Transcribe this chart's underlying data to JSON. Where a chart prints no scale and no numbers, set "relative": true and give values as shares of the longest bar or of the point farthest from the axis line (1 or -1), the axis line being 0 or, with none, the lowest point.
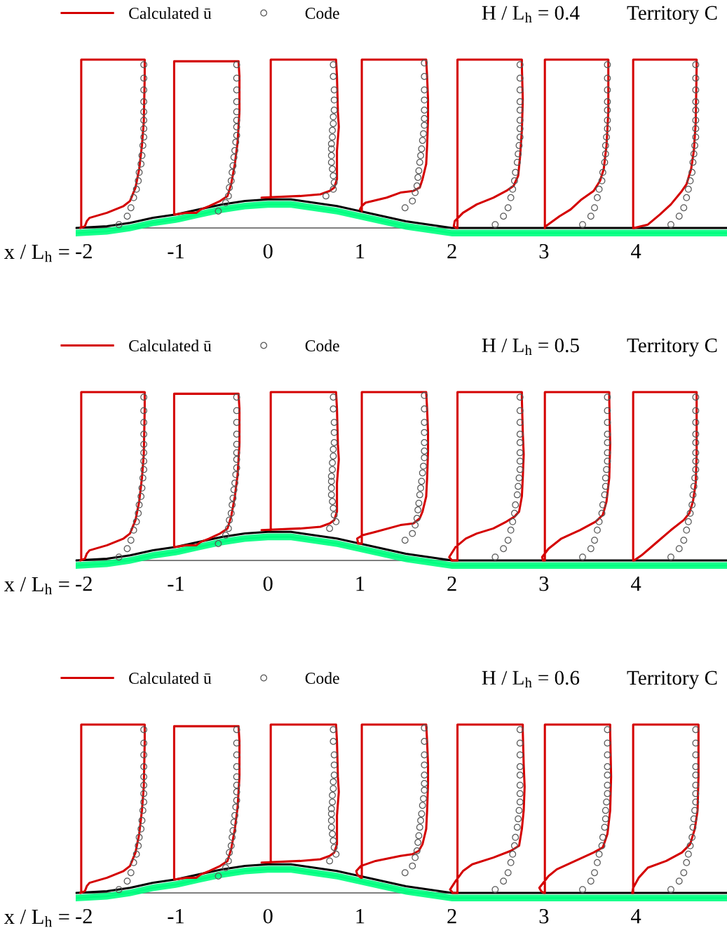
{
  "chart_data": [
    {
      "type": "line",
      "title": "H / L$_{h}$ = 0.4",
      "subtitle": "Territory C",
      "xlabel": "x / L$_{h}$ =",
      "relative": true,
      "xlim": [
        -2.09,
        4.99
      ],
      "xticks": [
        -2,
        -1,
        0,
        1,
        2,
        3,
        4
      ],
      "legend": "top left",
      "series": [
        {
          "color": "#00ff80",
          "x": [
            -2.09,
            -1.75,
            -1.5,
            -1.25,
            -1.0,
            -0.75,
            -0.5,
            -0.25,
            0,
            0.25,
            0.5,
            0.75,
            1.0,
            1.25,
            1.5,
            1.75,
            2.0,
            4.99
          ],
          "values": [
            -0.03,
            -0.02,
            0,
            0.03,
            0.05,
            0.08,
            0.11,
            0.13,
            0.14,
            0.14,
            0.12,
            0.1,
            0.07,
            0.04,
            0.01,
            -0.01,
            -0.03,
            -0.03
          ],
          "lower": [
            -0.05,
            -0.04,
            -0.02,
            0.01,
            0.03,
            0.06,
            0.09,
            0.11,
            0.12,
            0.12,
            0.1,
            0.08,
            0.05,
            0.02,
            -0.01,
            -0.03,
            -0.05,
            -0.05
          ],
          "upper": [
            -0.01,
            0,
            0.02,
            0.05,
            0.07,
            0.1,
            0.13,
            0.15,
            0.16,
            0.16,
            0.14,
            0.12,
            0.09,
            0.06,
            0.03,
            0.01,
            -0.01,
            -0.01
          ]
        },
        {
          "color": "#000000",
          "x": [
            -2.09,
            -1.75,
            -1.5,
            -1.25,
            -1.0,
            -0.75,
            -0.5,
            -0.25,
            0,
            0.25,
            0.5,
            0.75,
            1.0,
            1.25,
            1.5,
            1.75,
            2.0,
            4.99
          ],
          "values": [
            0,
            0.01,
            0.03,
            0.06,
            0.08,
            0.11,
            0.14,
            0.16,
            0.17,
            0.17,
            0.15,
            0.13,
            0.1,
            0.07,
            0.04,
            0.02,
            0,
            0
          ]
        },
        {
          "name": "Calculated ū",
          "color": "#d40000",
          "x": [
            -2.03,
            -2.03,
            -1.34,
            -1.34,
            -1.35,
            -1.37,
            -1.4,
            -1.44,
            -1.5,
            -1.57,
            -1.75,
            -1.94,
            -1.97,
            -1.99,
            -2.04,
            null,
            -1.02,
            -1.02,
            -0.32,
            -0.31,
            -0.31,
            -0.33,
            -0.36,
            -0.4,
            -0.44,
            -0.52,
            -0.64,
            -0.73,
            -0.78,
            -0.89,
            -1.01,
            null,
            0.03,
            0.03,
            0.74,
            0.75,
            0.76,
            0.77,
            0.75,
            0.75,
            0.72,
            0.67,
            0.57,
            0.35,
            -0.07,
            null,
            1.02,
            1.02,
            1.72,
            1.73,
            1.74,
            1.74,
            1.73,
            1.72,
            1.68,
            1.65,
            1.58,
            1.44,
            1.29,
            1.14,
            1.06,
            1.02,
            1.0,
            null,
            2.06,
            2.06,
            2.76,
            2.76,
            2.77,
            2.76,
            2.74,
            2.72,
            2.67,
            2.59,
            2.45,
            2.27,
            2.12,
            2.03,
            2.02,
            2.05,
            null,
            3.01,
            3.01,
            3.7,
            3.7,
            3.7,
            3.68,
            3.65,
            3.61,
            3.54,
            3.41,
            3.29,
            3.17,
            3.02,
            null,
            3.97,
            3.97,
            4.66,
            4.66,
            4.65,
            4.63,
            4.6,
            4.55,
            4.5,
            4.38,
            4.26,
            4.13,
            3.98
          ],
          "values": [
            0.01,
            1.0,
            1.0,
            0.9,
            0.63,
            0.49,
            0.35,
            0.24,
            0.16,
            0.13,
            0.09,
            0.06,
            0.04,
            0.01,
            0.0,
            null,
            0.08,
            0.99,
            0.99,
            0.9,
            0.69,
            0.51,
            0.38,
            0.26,
            0.19,
            0.16,
            0.13,
            0.11,
            0.09,
            0.09,
            0.08,
            null,
            0.18,
            1.0,
            1.0,
            0.9,
            0.69,
            0.6,
            0.46,
            0.29,
            0.24,
            0.22,
            0.2,
            0.19,
            0.18,
            null,
            0.1,
            1.0,
            1.0,
            0.9,
            0.76,
            0.65,
            0.49,
            0.38,
            0.29,
            0.24,
            0.22,
            0.21,
            0.18,
            0.16,
            0.15,
            0.13,
            0.11,
            null,
            0.0,
            1.0,
            1.0,
            0.96,
            0.76,
            0.58,
            0.42,
            0.31,
            0.25,
            0.22,
            0.18,
            0.14,
            0.09,
            0.04,
            0.01,
            0.0,
            null,
            0.0,
            1.0,
            1.0,
            0.96,
            0.69,
            0.49,
            0.35,
            0.28,
            0.22,
            0.17,
            0.11,
            0.07,
            0.01,
            null,
            0.0,
            1.0,
            1.0,
            0.96,
            0.63,
            0.46,
            0.35,
            0.26,
            0.22,
            0.14,
            0.08,
            0.02,
            0.0
          ]
        },
        {
          "name": "Code",
          "type": "scatter",
          "marker": "circle",
          "color": "#595959",
          "x": [
            -1.35,
            -1.35,
            -1.35,
            -1.35,
            -1.35,
            -1.35,
            -1.35,
            -1.35,
            -1.36,
            -1.37,
            -1.38,
            -1.4,
            -1.41,
            -1.43,
            -1.46,
            -1.49,
            -1.53,
            -1.62,
            -0.34,
            -0.34,
            -0.34,
            -0.34,
            -0.34,
            -0.34,
            -0.34,
            -0.34,
            -0.35,
            -0.36,
            -0.37,
            -0.38,
            -0.39,
            -0.4,
            -0.42,
            -0.43,
            -0.46,
            -0.54,
            0.71,
            0.71,
            0.72,
            0.72,
            0.72,
            0.71,
            0.71,
            0.7,
            0.7,
            0.69,
            0.69,
            0.69,
            0.69,
            0.7,
            0.71,
            0.72,
            0.71,
            0.63,
            1.7,
            1.7,
            1.7,
            1.7,
            1.7,
            1.7,
            1.7,
            1.69,
            1.68,
            1.67,
            1.66,
            1.65,
            1.64,
            1.63,
            1.62,
            1.6,
            1.57,
            1.49,
            2.74,
            2.74,
            2.74,
            2.74,
            2.74,
            2.74,
            2.74,
            2.74,
            2.73,
            2.72,
            2.71,
            2.69,
            2.68,
            2.66,
            2.64,
            2.61,
            2.56,
            2.47,
            3.69,
            3.69,
            3.69,
            3.69,
            3.69,
            3.69,
            3.69,
            3.68,
            3.67,
            3.67,
            3.66,
            3.64,
            3.63,
            3.6,
            3.58,
            3.55,
            3.51,
            3.42,
            4.65,
            4.65,
            4.65,
            4.65,
            4.65,
            4.65,
            4.65,
            4.65,
            4.64,
            4.63,
            4.62,
            4.61,
            4.59,
            4.57,
            4.55,
            4.52,
            4.47,
            4.38
          ],
          "values": [
            0.97,
            0.89,
            0.82,
            0.75,
            0.69,
            0.64,
            0.59,
            0.54,
            0.49,
            0.43,
            0.38,
            0.33,
            0.28,
            0.23,
            0.18,
            0.12,
            0.07,
            0.02,
            0.97,
            0.89,
            0.82,
            0.75,
            0.69,
            0.64,
            0.6,
            0.55,
            0.51,
            0.46,
            0.42,
            0.37,
            0.33,
            0.28,
            0.24,
            0.19,
            0.15,
            0.1,
            0.97,
            0.9,
            0.82,
            0.76,
            0.7,
            0.66,
            0.62,
            0.58,
            0.54,
            0.5,
            0.47,
            0.43,
            0.39,
            0.35,
            0.31,
            0.27,
            0.23,
            0.19,
            0.98,
            0.9,
            0.82,
            0.76,
            0.7,
            0.65,
            0.61,
            0.56,
            0.52,
            0.47,
            0.43,
            0.39,
            0.34,
            0.3,
            0.25,
            0.21,
            0.16,
            0.12,
            0.97,
            0.89,
            0.82,
            0.75,
            0.7,
            0.64,
            0.59,
            0.54,
            0.49,
            0.44,
            0.39,
            0.33,
            0.28,
            0.23,
            0.18,
            0.12,
            0.07,
            0.02,
            0.97,
            0.89,
            0.82,
            0.75,
            0.7,
            0.64,
            0.59,
            0.54,
            0.49,
            0.44,
            0.39,
            0.33,
            0.28,
            0.23,
            0.18,
            0.12,
            0.07,
            0.02,
            0.97,
            0.89,
            0.82,
            0.75,
            0.7,
            0.64,
            0.59,
            0.54,
            0.49,
            0.44,
            0.39,
            0.33,
            0.28,
            0.23,
            0.18,
            0.12,
            0.07,
            0.02
          ]
        }
      ]
    },
    {
      "type": "line",
      "title": "H / L$_{h}$ = 0.5",
      "subtitle": "Territory C",
      "xlabel": "x / L$_{h}$ =",
      "relative": true,
      "xlim": [
        -2.09,
        4.99
      ],
      "xticks": [
        -2,
        -1,
        0,
        1,
        2,
        3,
        4
      ],
      "legend": "top left",
      "series": [
        {
          "color": "#00ff80",
          "x": [
            -2.09,
            -1.75,
            -1.5,
            -1.25,
            -1.0,
            -0.75,
            -0.5,
            -0.25,
            0,
            0.25,
            0.5,
            0.75,
            1.0,
            1.25,
            1.5,
            1.75,
            2.0,
            4.99
          ],
          "values": [
            -0.03,
            -0.02,
            0,
            0.03,
            0.05,
            0.08,
            0.11,
            0.13,
            0.14,
            0.14,
            0.12,
            0.1,
            0.07,
            0.04,
            0.01,
            -0.01,
            -0.03,
            -0.03
          ],
          "lower": [
            -0.05,
            -0.04,
            -0.02,
            0.01,
            0.03,
            0.06,
            0.09,
            0.11,
            0.12,
            0.12,
            0.1,
            0.08,
            0.05,
            0.02,
            -0.01,
            -0.03,
            -0.05,
            -0.05
          ],
          "upper": [
            -0.01,
            0,
            0.02,
            0.05,
            0.07,
            0.1,
            0.13,
            0.15,
            0.16,
            0.16,
            0.14,
            0.12,
            0.09,
            0.06,
            0.03,
            0.01,
            -0.01,
            -0.01
          ]
        },
        {
          "color": "#000000",
          "x": [
            -2.09,
            -1.75,
            -1.5,
            -1.25,
            -1.0,
            -0.75,
            -0.5,
            -0.25,
            0,
            0.25,
            0.5,
            0.75,
            1.0,
            1.25,
            1.5,
            1.75,
            2.0,
            4.99
          ],
          "values": [
            0,
            0.01,
            0.03,
            0.06,
            0.08,
            0.11,
            0.14,
            0.16,
            0.17,
            0.17,
            0.15,
            0.13,
            0.1,
            0.07,
            0.04,
            0.02,
            0,
            0
          ]
        },
        {
          "name": "Calculated ū",
          "color": "#d40000",
          "x": [
            -2.03,
            -2.03,
            -1.34,
            -1.34,
            -1.35,
            -1.37,
            -1.4,
            -1.44,
            -1.5,
            -1.57,
            -1.75,
            -1.94,
            -1.97,
            -1.99,
            -2.04,
            null,
            -1.02,
            -1.02,
            -0.32,
            -0.31,
            -0.31,
            -0.33,
            -0.36,
            -0.4,
            -0.44,
            -0.52,
            -0.64,
            -0.73,
            -0.78,
            -0.89,
            -1.01,
            null,
            0.03,
            0.03,
            0.74,
            0.75,
            0.76,
            0.77,
            0.75,
            0.75,
            0.72,
            0.67,
            0.57,
            0.35,
            -0.07,
            null,
            1.02,
            1.02,
            1.72,
            1.73,
            1.74,
            1.74,
            1.73,
            1.72,
            1.68,
            1.65,
            1.58,
            1.44,
            1.17,
            1.03,
            0.97,
            0.98,
            1.01,
            null,
            2.06,
            2.06,
            2.76,
            2.76,
            2.77,
            2.78,
            2.77,
            2.76,
            2.73,
            2.68,
            2.59,
            2.45,
            2.27,
            2.15,
            2.04,
            1.97,
            2.0,
            2.05,
            null,
            3.01,
            3.01,
            3.71,
            3.71,
            3.72,
            3.71,
            3.68,
            3.64,
            3.56,
            3.39,
            3.19,
            3.05,
            2.98,
            2.99,
            3.0,
            null,
            3.97,
            3.97,
            4.66,
            4.66,
            4.66,
            4.65,
            4.62,
            4.58,
            4.52,
            4.38,
            4.21,
            4.06,
            3.98
          ],
          "values": [
            0.01,
            1.0,
            1.0,
            0.9,
            0.63,
            0.49,
            0.35,
            0.24,
            0.16,
            0.13,
            0.09,
            0.06,
            0.04,
            0.01,
            0.0,
            null,
            0.08,
            0.99,
            0.99,
            0.9,
            0.69,
            0.51,
            0.38,
            0.26,
            0.19,
            0.16,
            0.13,
            0.11,
            0.09,
            0.09,
            0.08,
            null,
            0.18,
            1.0,
            1.0,
            0.9,
            0.69,
            0.6,
            0.46,
            0.29,
            0.24,
            0.22,
            0.2,
            0.19,
            0.18,
            null,
            0.1,
            1.0,
            1.0,
            0.9,
            0.76,
            0.65,
            0.49,
            0.38,
            0.29,
            0.25,
            0.22,
            0.21,
            0.17,
            0.15,
            0.13,
            0.1,
            0.1,
            null,
            0.0,
            1.0,
            1.0,
            0.96,
            0.76,
            0.63,
            0.49,
            0.38,
            0.29,
            0.26,
            0.23,
            0.19,
            0.16,
            0.13,
            0.08,
            0.02,
            0.0,
            0.0,
            null,
            0.0,
            1.0,
            1.0,
            0.96,
            0.69,
            0.49,
            0.35,
            0.27,
            0.23,
            0.18,
            0.13,
            0.07,
            0.02,
            0.0,
            0.0,
            null,
            0.0,
            1.0,
            1.0,
            0.96,
            0.63,
            0.46,
            0.35,
            0.28,
            0.24,
            0.18,
            0.1,
            0.03,
            0.0
          ]
        },
        {
          "name": "Code",
          "type": "scatter",
          "marker": "circle",
          "color": "#595959",
          "x": [
            -1.35,
            -1.35,
            -1.35,
            -1.35,
            -1.35,
            -1.35,
            -1.35,
            -1.35,
            -1.36,
            -1.37,
            -1.38,
            -1.4,
            -1.41,
            -1.43,
            -1.46,
            -1.49,
            -1.53,
            -1.62,
            -0.34,
            -0.34,
            -0.34,
            -0.34,
            -0.34,
            -0.34,
            -0.34,
            -0.34,
            -0.35,
            -0.36,
            -0.37,
            -0.38,
            -0.39,
            -0.4,
            -0.42,
            -0.43,
            -0.46,
            -0.54,
            0.71,
            0.71,
            0.72,
            0.72,
            0.72,
            0.71,
            0.71,
            0.7,
            0.7,
            0.69,
            0.69,
            0.69,
            0.69,
            0.7,
            0.71,
            0.72,
            0.74,
            0.67,
            1.7,
            1.7,
            1.7,
            1.7,
            1.7,
            1.7,
            1.7,
            1.69,
            1.68,
            1.67,
            1.66,
            1.65,
            1.64,
            1.63,
            1.62,
            1.6,
            1.57,
            1.49,
            2.74,
            2.74,
            2.74,
            2.74,
            2.74,
            2.74,
            2.74,
            2.74,
            2.73,
            2.72,
            2.71,
            2.69,
            2.68,
            2.66,
            2.64,
            2.61,
            2.56,
            2.47,
            3.69,
            3.69,
            3.69,
            3.69,
            3.69,
            3.69,
            3.69,
            3.68,
            3.67,
            3.67,
            3.66,
            3.64,
            3.63,
            3.6,
            3.58,
            3.55,
            3.51,
            3.42,
            4.65,
            4.65,
            4.65,
            4.65,
            4.65,
            4.65,
            4.65,
            4.65,
            4.64,
            4.63,
            4.62,
            4.61,
            4.59,
            4.57,
            4.55,
            4.52,
            4.47,
            4.38
          ],
          "values": [
            0.97,
            0.89,
            0.82,
            0.75,
            0.69,
            0.64,
            0.59,
            0.54,
            0.49,
            0.43,
            0.38,
            0.33,
            0.28,
            0.23,
            0.18,
            0.12,
            0.07,
            0.02,
            0.97,
            0.89,
            0.82,
            0.75,
            0.69,
            0.64,
            0.6,
            0.55,
            0.51,
            0.46,
            0.42,
            0.37,
            0.33,
            0.28,
            0.24,
            0.19,
            0.15,
            0.1,
            0.97,
            0.9,
            0.82,
            0.76,
            0.7,
            0.66,
            0.62,
            0.58,
            0.54,
            0.5,
            0.47,
            0.43,
            0.39,
            0.35,
            0.31,
            0.27,
            0.23,
            0.19,
            0.98,
            0.9,
            0.82,
            0.76,
            0.7,
            0.65,
            0.61,
            0.56,
            0.52,
            0.47,
            0.43,
            0.39,
            0.34,
            0.3,
            0.25,
            0.21,
            0.16,
            0.12,
            0.97,
            0.89,
            0.82,
            0.75,
            0.7,
            0.64,
            0.59,
            0.54,
            0.49,
            0.44,
            0.39,
            0.33,
            0.28,
            0.23,
            0.18,
            0.12,
            0.07,
            0.02,
            0.97,
            0.89,
            0.82,
            0.75,
            0.7,
            0.64,
            0.59,
            0.54,
            0.49,
            0.44,
            0.39,
            0.33,
            0.28,
            0.23,
            0.18,
            0.12,
            0.07,
            0.02,
            0.97,
            0.89,
            0.82,
            0.75,
            0.7,
            0.64,
            0.59,
            0.54,
            0.49,
            0.44,
            0.39,
            0.33,
            0.28,
            0.23,
            0.18,
            0.12,
            0.07,
            0.02
          ]
        }
      ]
    },
    {
      "type": "line",
      "title": "H / L$_{h}$ = 0.6",
      "subtitle": "Territory C",
      "xlabel": "x / L$_{h}$ =",
      "relative": true,
      "xlim": [
        -2.09,
        4.99
      ],
      "xticks": [
        -2,
        -1,
        0,
        1,
        2,
        3,
        4
      ],
      "legend": "top left",
      "series": [
        {
          "color": "#00ff80",
          "x": [
            -2.09,
            -1.75,
            -1.5,
            -1.25,
            -1.0,
            -0.75,
            -0.5,
            -0.25,
            0,
            0.25,
            0.5,
            0.75,
            1.0,
            1.25,
            1.5,
            1.75,
            2.0,
            4.99
          ],
          "values": [
            -0.03,
            -0.02,
            0,
            0.03,
            0.05,
            0.08,
            0.11,
            0.13,
            0.14,
            0.14,
            0.12,
            0.1,
            0.07,
            0.04,
            0.01,
            -0.01,
            -0.03,
            -0.03
          ],
          "lower": [
            -0.05,
            -0.04,
            -0.02,
            0.01,
            0.03,
            0.06,
            0.09,
            0.11,
            0.12,
            0.12,
            0.1,
            0.08,
            0.05,
            0.02,
            -0.01,
            -0.03,
            -0.05,
            -0.05
          ],
          "upper": [
            -0.01,
            0,
            0.02,
            0.05,
            0.07,
            0.1,
            0.13,
            0.15,
            0.16,
            0.16,
            0.14,
            0.12,
            0.09,
            0.06,
            0.03,
            0.01,
            -0.01,
            -0.01
          ]
        },
        {
          "color": "#000000",
          "x": [
            -2.09,
            -1.75,
            -1.5,
            -1.25,
            -1.0,
            -0.75,
            -0.5,
            -0.25,
            0,
            0.25,
            0.5,
            0.75,
            1.0,
            1.25,
            1.5,
            1.75,
            2.0,
            4.99
          ],
          "values": [
            0,
            0.01,
            0.03,
            0.06,
            0.08,
            0.11,
            0.14,
            0.16,
            0.17,
            0.17,
            0.15,
            0.13,
            0.1,
            0.07,
            0.04,
            0.02,
            0,
            0
          ]
        },
        {
          "name": "Calculated ū",
          "color": "#d40000",
          "x": [
            -2.03,
            -2.03,
            -1.34,
            -1.34,
            -1.35,
            -1.37,
            -1.4,
            -1.44,
            -1.5,
            -1.57,
            -1.75,
            -1.94,
            -1.97,
            -1.99,
            -2.04,
            null,
            -1.02,
            -1.02,
            -0.32,
            -0.31,
            -0.31,
            -0.33,
            -0.36,
            -0.4,
            -0.44,
            -0.52,
            -0.64,
            -0.73,
            -0.78,
            -0.89,
            -1.01,
            null,
            0.03,
            0.03,
            0.74,
            0.75,
            0.76,
            0.77,
            0.75,
            0.75,
            0.72,
            0.67,
            0.57,
            0.35,
            -0.07,
            null,
            1.02,
            1.02,
            1.72,
            1.73,
            1.74,
            1.74,
            1.73,
            1.72,
            1.68,
            1.64,
            1.57,
            1.44,
            1.17,
            1.01,
            0.96,
            0.97,
            1.01,
            null,
            2.06,
            2.06,
            2.77,
            2.77,
            2.78,
            2.79,
            2.78,
            2.76,
            2.73,
            2.64,
            2.45,
            2.22,
            2.12,
            2.04,
            1.98,
            2.01,
            2.05,
            null,
            3.01,
            3.01,
            3.72,
            3.72,
            3.73,
            3.72,
            3.69,
            3.64,
            3.54,
            3.34,
            3.14,
            3.05,
            2.95,
            2.97,
            3.0,
            null,
            3.97,
            3.97,
            4.68,
            4.68,
            4.68,
            4.67,
            4.64,
            4.59,
            4.5,
            4.33,
            4.13,
            4.03,
            3.97,
            3.96
          ],
          "values": [
            0.01,
            1.0,
            1.0,
            0.9,
            0.63,
            0.49,
            0.35,
            0.24,
            0.16,
            0.13,
            0.09,
            0.06,
            0.04,
            0.01,
            0.0,
            null,
            0.08,
            0.99,
            0.99,
            0.9,
            0.69,
            0.51,
            0.38,
            0.26,
            0.19,
            0.16,
            0.13,
            0.11,
            0.09,
            0.09,
            0.08,
            null,
            0.18,
            1.0,
            1.0,
            0.9,
            0.69,
            0.6,
            0.46,
            0.29,
            0.24,
            0.22,
            0.2,
            0.19,
            0.18,
            null,
            0.09,
            1.0,
            1.0,
            0.9,
            0.76,
            0.65,
            0.49,
            0.38,
            0.29,
            0.25,
            0.23,
            0.22,
            0.19,
            0.16,
            0.13,
            0.11,
            0.09,
            null,
            0.0,
            1.0,
            1.0,
            0.96,
            0.76,
            0.63,
            0.49,
            0.38,
            0.28,
            0.25,
            0.21,
            0.17,
            0.13,
            0.07,
            0.02,
            0.0,
            0.0,
            null,
            0.0,
            1.0,
            1.0,
            0.96,
            0.69,
            0.49,
            0.35,
            0.27,
            0.24,
            0.19,
            0.14,
            0.1,
            0.03,
            0.01,
            0.0,
            null,
            0.0,
            1.0,
            1.0,
            0.96,
            0.69,
            0.49,
            0.38,
            0.29,
            0.24,
            0.19,
            0.15,
            0.09,
            0.03,
            0.0
          ]
        },
        {
          "name": "Code",
          "type": "scatter",
          "marker": "circle",
          "color": "#595959",
          "x": [
            -1.35,
            -1.35,
            -1.35,
            -1.35,
            -1.35,
            -1.35,
            -1.35,
            -1.35,
            -1.36,
            -1.37,
            -1.38,
            -1.4,
            -1.41,
            -1.43,
            -1.46,
            -1.49,
            -1.53,
            -1.62,
            -0.34,
            -0.34,
            -0.34,
            -0.34,
            -0.34,
            -0.34,
            -0.34,
            -0.34,
            -0.35,
            -0.36,
            -0.37,
            -0.38,
            -0.39,
            -0.4,
            -0.42,
            -0.43,
            -0.46,
            -0.54,
            0.71,
            0.71,
            0.72,
            0.72,
            0.72,
            0.71,
            0.71,
            0.7,
            0.7,
            0.69,
            0.69,
            0.69,
            0.69,
            0.7,
            0.71,
            0.72,
            0.74,
            0.67,
            1.7,
            1.7,
            1.7,
            1.7,
            1.7,
            1.7,
            1.7,
            1.69,
            1.68,
            1.67,
            1.66,
            1.65,
            1.64,
            1.63,
            1.62,
            1.6,
            1.57,
            1.49,
            2.74,
            2.74,
            2.74,
            2.74,
            2.74,
            2.74,
            2.74,
            2.74,
            2.73,
            2.72,
            2.71,
            2.69,
            2.68,
            2.66,
            2.64,
            2.61,
            2.56,
            2.47,
            3.69,
            3.69,
            3.69,
            3.69,
            3.69,
            3.69,
            3.69,
            3.68,
            3.67,
            3.67,
            3.66,
            3.64,
            3.63,
            3.6,
            3.58,
            3.55,
            3.51,
            3.42,
            4.65,
            4.65,
            4.65,
            4.65,
            4.65,
            4.65,
            4.65,
            4.65,
            4.64,
            4.63,
            4.62,
            4.61,
            4.59,
            4.57,
            4.55,
            4.52,
            4.47,
            4.38
          ],
          "values": [
            0.97,
            0.89,
            0.82,
            0.75,
            0.69,
            0.64,
            0.59,
            0.54,
            0.49,
            0.43,
            0.38,
            0.33,
            0.28,
            0.23,
            0.18,
            0.12,
            0.07,
            0.02,
            0.97,
            0.89,
            0.82,
            0.75,
            0.69,
            0.64,
            0.6,
            0.55,
            0.51,
            0.46,
            0.42,
            0.37,
            0.33,
            0.28,
            0.24,
            0.19,
            0.15,
            0.1,
            0.97,
            0.9,
            0.82,
            0.76,
            0.7,
            0.66,
            0.62,
            0.58,
            0.54,
            0.5,
            0.47,
            0.43,
            0.39,
            0.35,
            0.31,
            0.27,
            0.23,
            0.19,
            0.98,
            0.9,
            0.82,
            0.76,
            0.7,
            0.65,
            0.61,
            0.56,
            0.52,
            0.47,
            0.43,
            0.39,
            0.34,
            0.3,
            0.25,
            0.21,
            0.16,
            0.12,
            0.97,
            0.89,
            0.82,
            0.75,
            0.7,
            0.64,
            0.59,
            0.54,
            0.49,
            0.44,
            0.39,
            0.33,
            0.28,
            0.23,
            0.18,
            0.12,
            0.07,
            0.02,
            0.97,
            0.89,
            0.82,
            0.75,
            0.7,
            0.64,
            0.59,
            0.54,
            0.49,
            0.44,
            0.39,
            0.33,
            0.28,
            0.23,
            0.18,
            0.12,
            0.07,
            0.02,
            0.97,
            0.89,
            0.82,
            0.75,
            0.7,
            0.64,
            0.59,
            0.54,
            0.49,
            0.44,
            0.39,
            0.33,
            0.28,
            0.23,
            0.18,
            0.12,
            0.07,
            0.02
          ]
        }
      ]
    }
  ]
}
